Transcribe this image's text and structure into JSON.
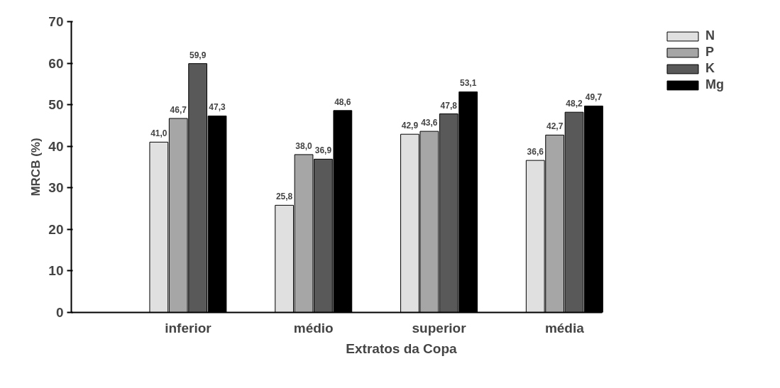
{
  "chart_data": {
    "type": "bar",
    "xlabel": "Extratos da Copa",
    "ylabel": "MRCB (%)",
    "categories": [
      "inferior",
      "médio",
      "superior",
      "média"
    ],
    "series": [
      {
        "name": "N",
        "color": "#e0e0e0",
        "values": [
          41.0,
          25.8,
          42.9,
          36.6
        ],
        "value_labels": [
          "41,0",
          "25,8",
          "42,9",
          "36,6"
        ]
      },
      {
        "name": "P",
        "color": "#a6a6a6",
        "values": [
          46.7,
          38.0,
          43.6,
          42.7
        ],
        "value_labels": [
          "46,7",
          "38,0",
          "43,6",
          "42,7"
        ]
      },
      {
        "name": "K",
        "color": "#595959",
        "values": [
          59.9,
          36.9,
          47.8,
          48.2
        ],
        "value_labels": [
          "59,9",
          "36,9",
          "47,8",
          "48,2"
        ]
      },
      {
        "name": "Mg",
        "color": "#000000",
        "values": [
          47.3,
          48.6,
          53.1,
          49.7
        ],
        "value_labels": [
          "47,3",
          "48,6",
          "53,1",
          "49,7"
        ]
      }
    ],
    "ylim": [
      0,
      70
    ],
    "yticks": [
      0,
      10,
      20,
      30,
      40,
      50,
      60,
      70
    ],
    "grid": false,
    "legend": "top right"
  }
}
